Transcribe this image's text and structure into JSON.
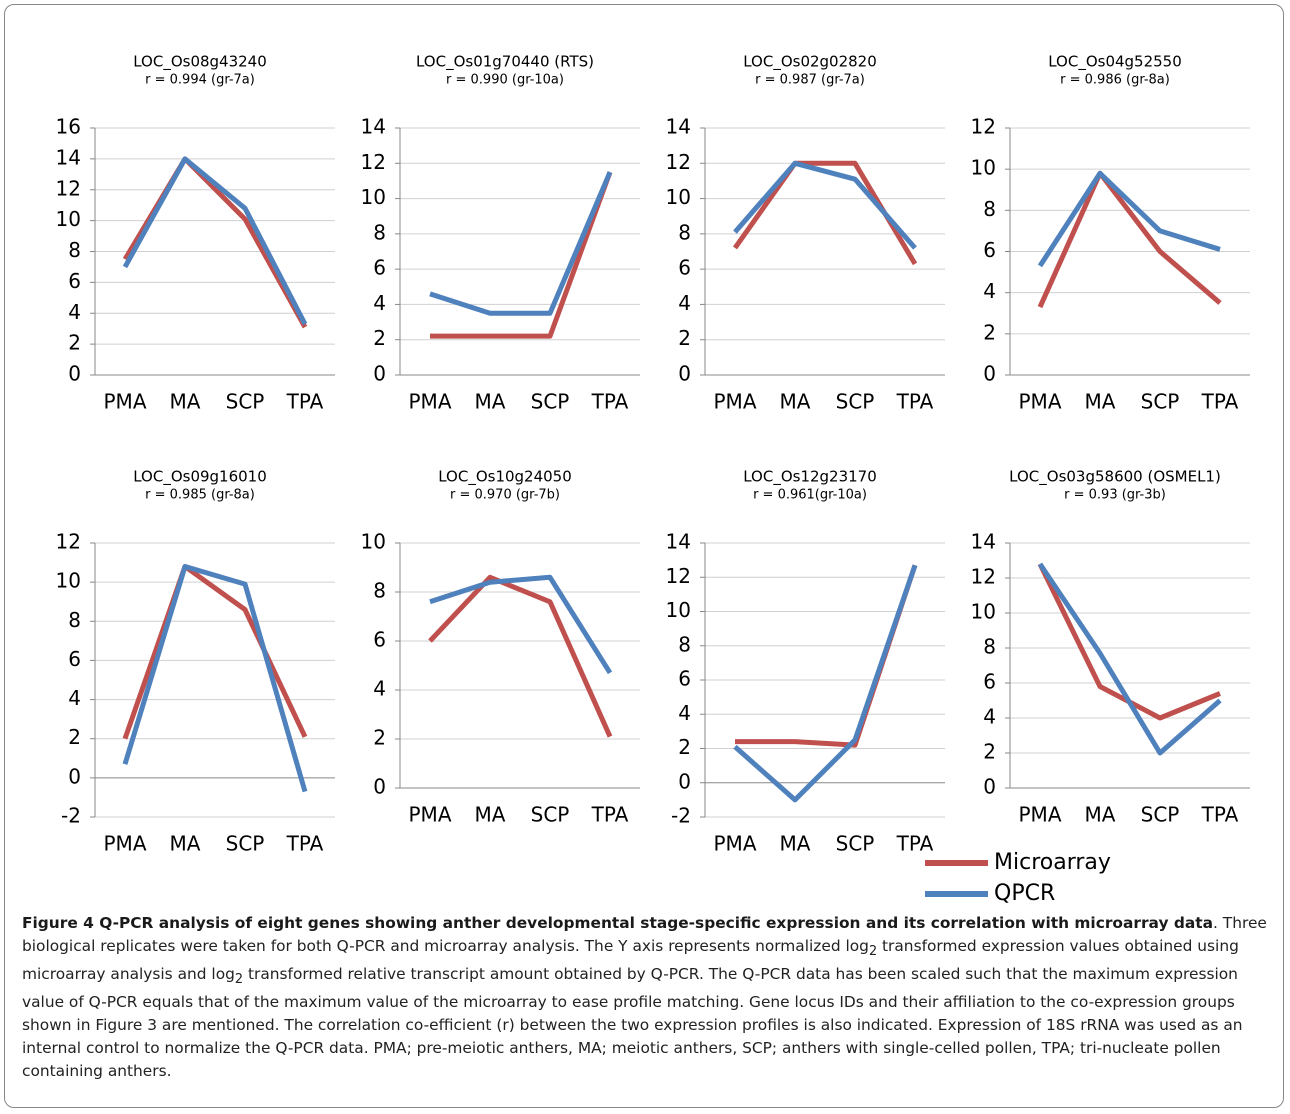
{
  "chart_data": [
    {
      "type": "line",
      "title": "LOC_Os08g43240",
      "subtitle": "r = 0.994 (gr-7a)",
      "categories": [
        "PMA",
        "MA",
        "SCP",
        "TPA"
      ],
      "ylim": [
        0,
        16
      ],
      "yticks": [
        0,
        2,
        4,
        6,
        8,
        10,
        12,
        14,
        16
      ],
      "grid": true,
      "series": [
        {
          "name": "Microarray",
          "color": "#c0504d",
          "values": [
            7.5,
            14,
            10.1,
            3.1
          ]
        },
        {
          "name": "QPCR",
          "color": "#4f81bd",
          "values": [
            7,
            14,
            10.8,
            3.3
          ]
        }
      ]
    },
    {
      "type": "line",
      "title": "LOC_Os01g70440 (RTS)",
      "subtitle": "r = 0.990 (gr-10a)",
      "categories": [
        "PMA",
        "MA",
        "SCP",
        "TPA"
      ],
      "ylim": [
        0,
        14
      ],
      "yticks": [
        0,
        2,
        4,
        6,
        8,
        10,
        12,
        14
      ],
      "grid": true,
      "series": [
        {
          "color": "#c0504d",
          "values": [
            2.2,
            2.2,
            2.2,
            11.5
          ]
        },
        {
          "color": "#4f81bd",
          "values": [
            4.6,
            3.5,
            3.5,
            11.5
          ]
        }
      ]
    },
    {
      "type": "line",
      "title": "LOC_Os02g02820",
      "subtitle": "r = 0.987 (gr-7a)",
      "categories": [
        "PMA",
        "MA",
        "SCP",
        "TPA"
      ],
      "ylim": [
        0,
        14
      ],
      "yticks": [
        0,
        2,
        4,
        6,
        8,
        10,
        12,
        14
      ],
      "grid": true,
      "series": [
        {
          "color": "#c0504d",
          "values": [
            7.2,
            12,
            12,
            6.3
          ]
        },
        {
          "color": "#4f81bd",
          "values": [
            8.1,
            12,
            11.1,
            7.2
          ]
        }
      ]
    },
    {
      "type": "line",
      "title": "LOC_Os04g52550",
      "subtitle": "r = 0.986 (gr-8a)",
      "categories": [
        "PMA",
        "MA",
        "SCP",
        "TPA"
      ],
      "ylim": [
        0,
        12
      ],
      "yticks": [
        0,
        2,
        4,
        6,
        8,
        10,
        12
      ],
      "grid": true,
      "series": [
        {
          "color": "#c0504d",
          "values": [
            3.3,
            9.8,
            6,
            3.5
          ]
        },
        {
          "color": "#4f81bd",
          "values": [
            5.3,
            9.8,
            7,
            6.1
          ]
        }
      ]
    },
    {
      "type": "line",
      "title": "LOC_Os09g16010",
      "subtitle": "r = 0.985 (gr-8a)",
      "categories": [
        "PMA",
        "MA",
        "SCP",
        "TPA"
      ],
      "ylim": [
        -2,
        12
      ],
      "yticks": [
        -2,
        0,
        2,
        4,
        6,
        8,
        10,
        12
      ],
      "grid": true,
      "series": [
        {
          "color": "#c0504d",
          "values": [
            2,
            10.8,
            8.6,
            2.1
          ]
        },
        {
          "color": "#4f81bd",
          "values": [
            0.7,
            10.8,
            9.9,
            -0.7
          ]
        }
      ]
    },
    {
      "type": "line",
      "title": "LOC_Os10g24050",
      "subtitle": "r = 0.970 (gr-7b)",
      "categories": [
        "PMA",
        "MA",
        "SCP",
        "TPA"
      ],
      "ylim": [
        0,
        10
      ],
      "yticks": [
        0,
        2,
        4,
        6,
        8,
        10
      ],
      "grid": true,
      "series": [
        {
          "color": "#c0504d",
          "values": [
            6,
            8.6,
            7.6,
            2.1
          ]
        },
        {
          "color": "#4f81bd",
          "values": [
            7.6,
            8.4,
            8.6,
            4.7
          ]
        }
      ]
    },
    {
      "type": "line",
      "title": "LOC_Os12g23170",
      "subtitle": "r = 0.961(gr-10a)",
      "categories": [
        "PMA",
        "MA",
        "SCP",
        "TPA"
      ],
      "ylim": [
        -2,
        14
      ],
      "yticks": [
        -2,
        0,
        2,
        4,
        6,
        8,
        10,
        12,
        14
      ],
      "grid": true,
      "series": [
        {
          "color": "#c0504d",
          "values": [
            2.4,
            2.4,
            2.2,
            12.7
          ]
        },
        {
          "color": "#4f81bd",
          "values": [
            2.1,
            -1,
            2.5,
            12.7
          ]
        }
      ]
    },
    {
      "type": "line",
      "title": "LOC_Os03g58600 (OSMEL1)",
      "subtitle": "r = 0.93 (gr-3b)",
      "categories": [
        "PMA",
        "MA",
        "SCP",
        "TPA"
      ],
      "ylim": [
        0,
        14
      ],
      "yticks": [
        0,
        2,
        4,
        6,
        8,
        10,
        12,
        14
      ],
      "grid": true,
      "series": [
        {
          "color": "#c0504d",
          "values": [
            12.8,
            5.8,
            4,
            5.4
          ]
        },
        {
          "color": "#4f81bd",
          "values": [
            12.8,
            7.7,
            2,
            5
          ]
        }
      ]
    }
  ],
  "caption": {
    "heading": "Figure 4 Q-PCR analysis of eight genes showing anther developmental stage-specific expression and its correlation with microarray data",
    "body": [
      ". Three biological replicates were taken for both Q-PCR and microarray analysis. The Y axis represents normalized log",
      "2",
      " transformed expression values obtained using microarray analysis and log",
      "2",
      " transformed relative transcript amount obtained by Q-PCR. The Q-PCR data has been scaled such that the maximum expression value of Q-PCR equals that of the maximum value of the microarray to ease profile matching. Gene locus IDs and their affiliation to the co-expression groups shown in Figure 3 are mentioned. The correlation co-efficient (r) between the two expression profiles is also indicated. Expression of 18S rRNA was used as an internal control to normalize the Q-PCR data. PMA; pre-meiotic anthers, MA; meiotic anthers, SCP; anthers with single-celled pollen, TPA; tri-nucleate pollen containing anthers."
    ]
  }
}
